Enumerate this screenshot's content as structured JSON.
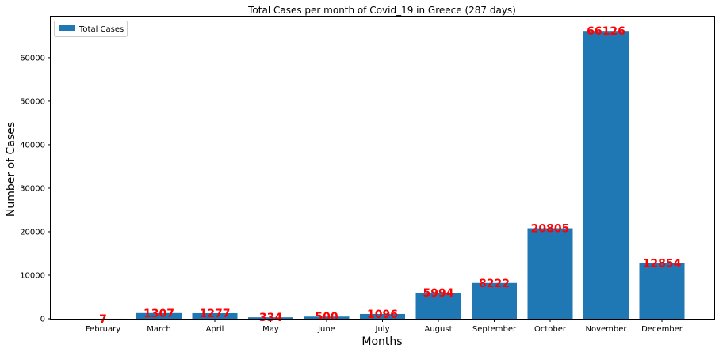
{
  "chart_data": {
    "type": "bar",
    "title": "Total Cases per month of Covid_19 in Greece (287 days)",
    "xlabel": "Months",
    "ylabel": "Number of Cases",
    "categories": [
      "February",
      "March",
      "April",
      "May",
      "June",
      "July",
      "August",
      "September",
      "October",
      "November",
      "December"
    ],
    "series": [
      {
        "name": "Total Cases",
        "values": [
          7,
          1307,
          1277,
          334,
          500,
          1096,
          5994,
          8222,
          20805,
          66126,
          12854
        ]
      }
    ],
    "ylim": [
      0,
      69432
    ],
    "yticks": [
      0,
      10000,
      20000,
      30000,
      40000,
      50000,
      60000
    ],
    "grid": false,
    "legend": "top-left",
    "data_labels": true,
    "colors": {
      "bar": "#1f77b4",
      "data_label": "#ff0000"
    }
  }
}
